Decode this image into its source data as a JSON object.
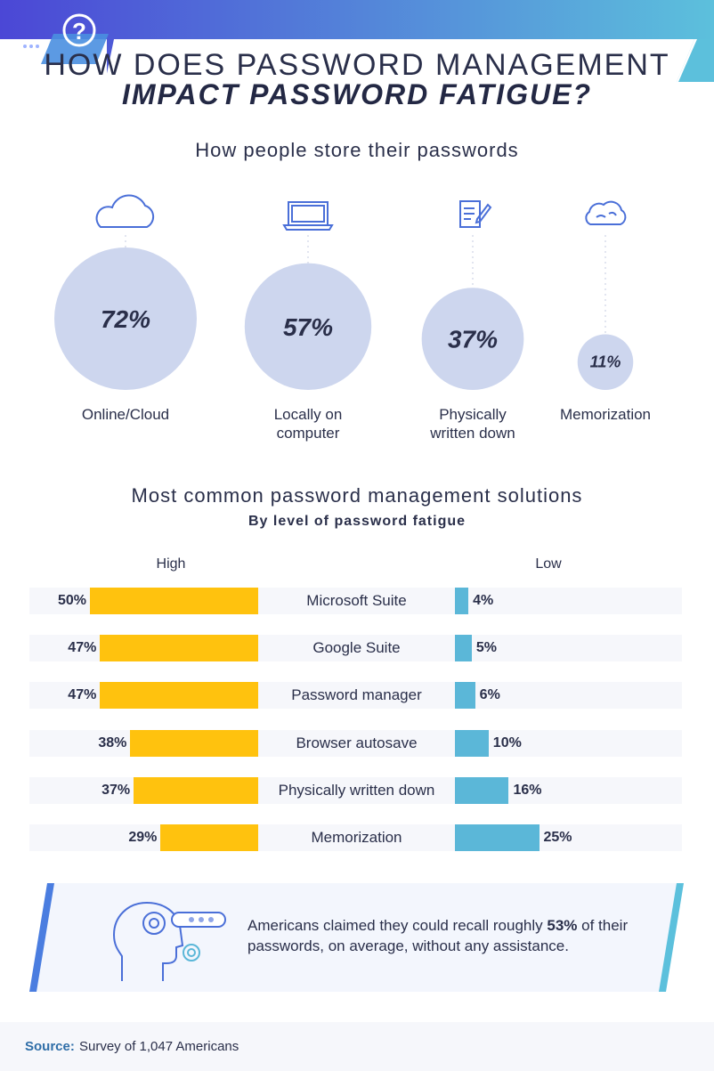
{
  "header": {
    "title_line1": "HOW DOES PASSWORD MANAGEMENT",
    "title_line2": "IMPACT PASSWORD FATIGUE?",
    "question_icon": "question-mark-icon",
    "colors": {
      "gradient_start": "#4b47d6",
      "gradient_end": "#5cc0dc"
    }
  },
  "storage_section": {
    "title": "How people store their passwords"
  },
  "management_section": {
    "title": "Most common password management solutions",
    "subtitle": "By level of password fatigue",
    "high_label": "High",
    "low_label": "Low"
  },
  "chart_data": [
    {
      "type": "bubble",
      "title": "How people store their passwords",
      "categories": [
        "Online/Cloud",
        "Locally on computer",
        "Physically written down",
        "Memorization"
      ],
      "values": [
        72,
        57,
        37,
        11
      ],
      "value_labels": [
        "72%",
        "57%",
        "37%",
        "11%"
      ],
      "icons": [
        "cloud-icon",
        "laptop-icon",
        "notepad-pencil-icon",
        "brain-cloud-icon"
      ],
      "bubble_color": "#cdd6ee"
    },
    {
      "type": "bar",
      "title": "Most common password management solutions",
      "subtitle": "By level of password fatigue",
      "categories": [
        "Microsoft Suite",
        "Google Suite",
        "Password manager",
        "Browser autosave",
        "Physically written down",
        "Memorization"
      ],
      "series": [
        {
          "name": "High",
          "values": [
            50,
            47,
            47,
            38,
            37,
            29
          ],
          "labels": [
            "50%",
            "47%",
            "47%",
            "38%",
            "37%",
            "29%"
          ],
          "color": "#ffc20e"
        },
        {
          "name": "Low",
          "values": [
            4,
            5,
            6,
            10,
            16,
            25
          ],
          "labels": [
            "4%",
            "5%",
            "6%",
            "10%",
            "16%",
            "25%"
          ],
          "color": "#5bb7d8"
        }
      ]
    }
  ],
  "callout": {
    "text": "Americans claimed they could recall roughly 53% of their passwords, on average, without any assistance.",
    "highlight": "53%",
    "icon": "head-gears-password-icon"
  },
  "footer": {
    "source_label": "Source:",
    "source_text": "Survey of 1,047 Americans"
  }
}
